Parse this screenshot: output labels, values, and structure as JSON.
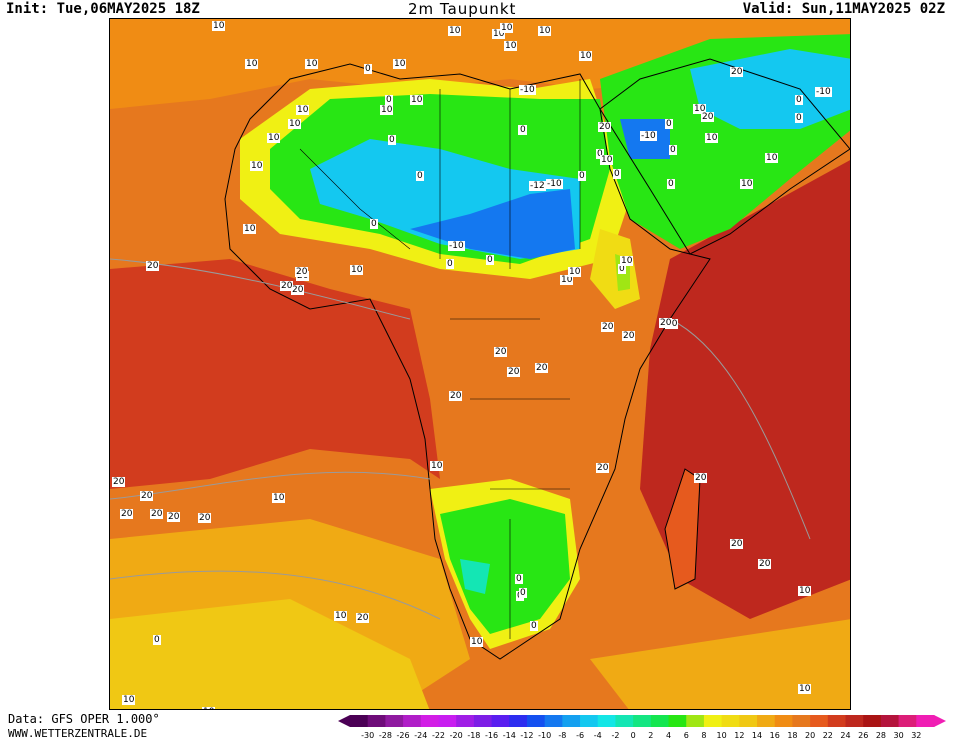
{
  "header": {
    "init": "Init: Tue,06MAY2025 18Z",
    "title": "2m Taupunkt",
    "valid": "Valid: Sun,11MAY2025 02Z"
  },
  "footer": {
    "data_source": "Data: GFS OPER 1.000°",
    "website": "WWW.WETTERZENTRALE.DE"
  },
  "legend": {
    "ticks": [
      "-30",
      "-28",
      "-26",
      "-24",
      "-22",
      "-20",
      "-18",
      "-16",
      "-14",
      "-12",
      "-10",
      "-8",
      "-6",
      "-4",
      "-2",
      "0",
      "2",
      "4",
      "6",
      "8",
      "10",
      "12",
      "14",
      "16",
      "18",
      "20",
      "22",
      "24",
      "26",
      "28",
      "30",
      "32"
    ],
    "colors": [
      "#4b0055",
      "#6e0c79",
      "#8f1aa0",
      "#b01ec8",
      "#d21ee6",
      "#c81ef0",
      "#a01ee6",
      "#7d1ee6",
      "#5a1ef0",
      "#2d2df0",
      "#1450f0",
      "#1478f0",
      "#14a0f0",
      "#14c8f0",
      "#14e6e6",
      "#14e6b4",
      "#14e682",
      "#14e650",
      "#28e614",
      "#a0e614",
      "#f0f014",
      "#f0dc14",
      "#f0c814",
      "#f0aa14",
      "#f08c14",
      "#e6781e",
      "#e65a1e",
      "#d23c1e",
      "#be281e",
      "#aa1414",
      "#b4143c",
      "#dc1e78",
      "#f01eb4"
    ]
  },
  "map_labels": [
    "10",
    "10",
    "10",
    "10",
    "10",
    "10",
    "10",
    "10",
    "10",
    "10",
    "10",
    "10",
    "0",
    "0",
    "10",
    "10",
    "0",
    "0",
    "0",
    "10",
    "10",
    "10",
    "0",
    "0",
    "-10",
    "0",
    "0",
    "0",
    "0",
    "-10",
    "10",
    "20",
    "20",
    "10",
    "0",
    "0",
    "-10",
    "0",
    "0",
    "10",
    "-10",
    "10",
    "0",
    "0",
    "10",
    "-12",
    "-10",
    "10",
    "10",
    "20",
    "20",
    "20",
    "20",
    "0",
    "10",
    "20",
    "20",
    "20",
    "20",
    "20",
    "20",
    "20",
    "20",
    "20",
    "20",
    "10",
    "20",
    "20",
    "20",
    "10",
    "20",
    "0",
    "0",
    "0",
    "0",
    "20",
    "20",
    "20",
    "10",
    "10",
    "20",
    "0",
    "10",
    "10",
    "10",
    "10",
    "20",
    "20",
    "20",
    "10"
  ]
}
